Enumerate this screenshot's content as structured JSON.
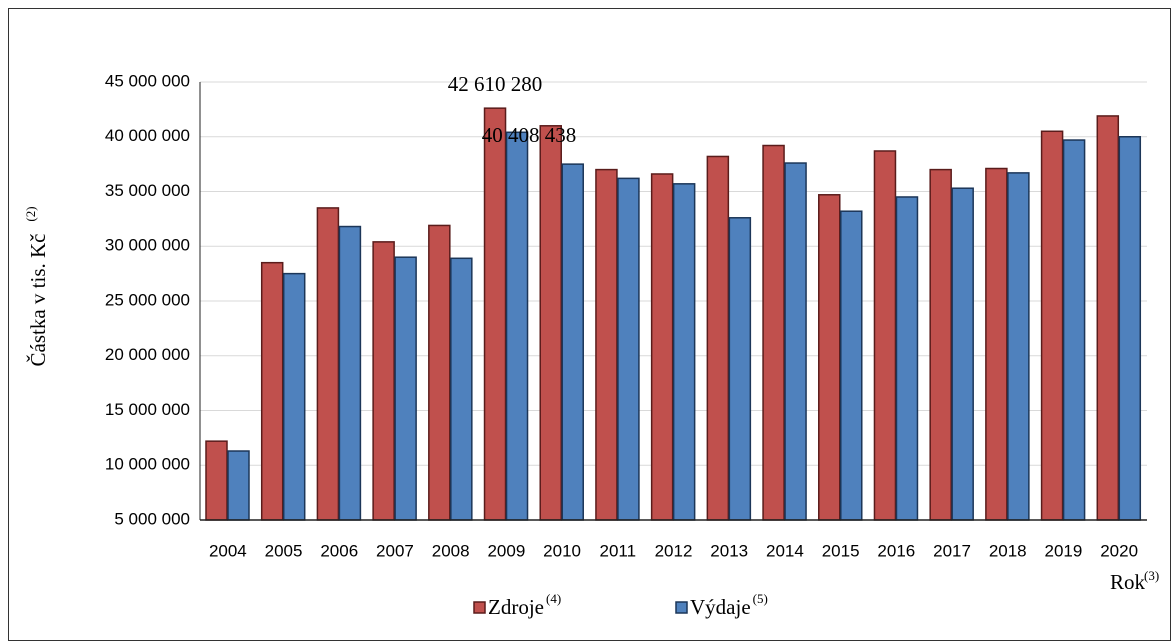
{
  "chart_data": {
    "type": "bar",
    "y_label": "Částka v tis. Kč",
    "y_label_note": "(2)",
    "x_label": "Rok",
    "x_label_note": "(3)",
    "categories": [
      "2004",
      "2005",
      "2006",
      "2007",
      "2008",
      "2009",
      "2010",
      "2011",
      "2012",
      "2013",
      "2014",
      "2015",
      "2016",
      "2017",
      "2018",
      "2019",
      "2020"
    ],
    "series": [
      {
        "name": "Zdroje",
        "name_note": "(4)",
        "color": "#c0504d",
        "edge": "#5a1c1b",
        "values": [
          12200000,
          28500000,
          33500000,
          30400000,
          31900000,
          42610280,
          41000000,
          37000000,
          36600000,
          38200000,
          39200000,
          34700000,
          38700000,
          37000000,
          37100000,
          40500000,
          41900000
        ],
        "value_labels": [
          null,
          null,
          null,
          null,
          null,
          "42 610 280",
          null,
          null,
          null,
          null,
          null,
          null,
          null,
          null,
          null,
          null,
          null
        ]
      },
      {
        "name": "Výdaje",
        "name_note": "(5)",
        "color": "#4f81bd",
        "edge": "#1c3658",
        "values": [
          11300000,
          27500000,
          31800000,
          29000000,
          28900000,
          40408438,
          37500000,
          36200000,
          35700000,
          32600000,
          37600000,
          33200000,
          34500000,
          35300000,
          36700000,
          39700000,
          40000000
        ],
        "value_labels": [
          null,
          null,
          null,
          null,
          null,
          "40 408 438",
          null,
          null,
          null,
          null,
          null,
          null,
          null,
          null,
          null,
          null,
          null
        ]
      }
    ],
    "ylim": [
      5000000,
      45000000
    ],
    "yticks": [
      {
        "value": 5000000,
        "label": "5 000 000"
      },
      {
        "value": 10000000,
        "label": "10 000 000"
      },
      {
        "value": 15000000,
        "label": "15 000 000"
      },
      {
        "value": 20000000,
        "label": "20 000 000"
      },
      {
        "value": 25000000,
        "label": "25 000 000"
      },
      {
        "value": 30000000,
        "label": "30 000 000"
      },
      {
        "value": 35000000,
        "label": "35 000 000"
      },
      {
        "value": 40000000,
        "label": "40 000 000"
      },
      {
        "value": 45000000,
        "label": "45 000 000"
      }
    ],
    "grid": true
  }
}
